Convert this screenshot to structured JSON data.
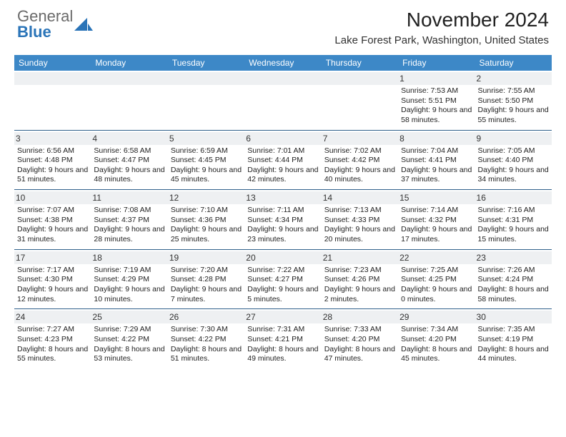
{
  "logo": {
    "text1": "General",
    "text2": "Blue"
  },
  "title": "November 2024",
  "location": "Lake Forest Park, Washington, United States",
  "colors": {
    "header_bg": "#3d88c7",
    "border": "#2e5f8a",
    "daybar": "#eef0f2",
    "logo_blue": "#2a74b8"
  },
  "weekdays": [
    "Sunday",
    "Monday",
    "Tuesday",
    "Wednesday",
    "Thursday",
    "Friday",
    "Saturday"
  ],
  "weeks": [
    [
      null,
      null,
      null,
      null,
      null,
      {
        "n": "1",
        "sr": "7:53 AM",
        "ss": "5:51 PM",
        "dl": "9 hours and 58 minutes."
      },
      {
        "n": "2",
        "sr": "7:55 AM",
        "ss": "5:50 PM",
        "dl": "9 hours and 55 minutes."
      }
    ],
    [
      {
        "n": "3",
        "sr": "6:56 AM",
        "ss": "4:48 PM",
        "dl": "9 hours and 51 minutes."
      },
      {
        "n": "4",
        "sr": "6:58 AM",
        "ss": "4:47 PM",
        "dl": "9 hours and 48 minutes."
      },
      {
        "n": "5",
        "sr": "6:59 AM",
        "ss": "4:45 PM",
        "dl": "9 hours and 45 minutes."
      },
      {
        "n": "6",
        "sr": "7:01 AM",
        "ss": "4:44 PM",
        "dl": "9 hours and 42 minutes."
      },
      {
        "n": "7",
        "sr": "7:02 AM",
        "ss": "4:42 PM",
        "dl": "9 hours and 40 minutes."
      },
      {
        "n": "8",
        "sr": "7:04 AM",
        "ss": "4:41 PM",
        "dl": "9 hours and 37 minutes."
      },
      {
        "n": "9",
        "sr": "7:05 AM",
        "ss": "4:40 PM",
        "dl": "9 hours and 34 minutes."
      }
    ],
    [
      {
        "n": "10",
        "sr": "7:07 AM",
        "ss": "4:38 PM",
        "dl": "9 hours and 31 minutes."
      },
      {
        "n": "11",
        "sr": "7:08 AM",
        "ss": "4:37 PM",
        "dl": "9 hours and 28 minutes."
      },
      {
        "n": "12",
        "sr": "7:10 AM",
        "ss": "4:36 PM",
        "dl": "9 hours and 25 minutes."
      },
      {
        "n": "13",
        "sr": "7:11 AM",
        "ss": "4:34 PM",
        "dl": "9 hours and 23 minutes."
      },
      {
        "n": "14",
        "sr": "7:13 AM",
        "ss": "4:33 PM",
        "dl": "9 hours and 20 minutes."
      },
      {
        "n": "15",
        "sr": "7:14 AM",
        "ss": "4:32 PM",
        "dl": "9 hours and 17 minutes."
      },
      {
        "n": "16",
        "sr": "7:16 AM",
        "ss": "4:31 PM",
        "dl": "9 hours and 15 minutes."
      }
    ],
    [
      {
        "n": "17",
        "sr": "7:17 AM",
        "ss": "4:30 PM",
        "dl": "9 hours and 12 minutes."
      },
      {
        "n": "18",
        "sr": "7:19 AM",
        "ss": "4:29 PM",
        "dl": "9 hours and 10 minutes."
      },
      {
        "n": "19",
        "sr": "7:20 AM",
        "ss": "4:28 PM",
        "dl": "9 hours and 7 minutes."
      },
      {
        "n": "20",
        "sr": "7:22 AM",
        "ss": "4:27 PM",
        "dl": "9 hours and 5 minutes."
      },
      {
        "n": "21",
        "sr": "7:23 AM",
        "ss": "4:26 PM",
        "dl": "9 hours and 2 minutes."
      },
      {
        "n": "22",
        "sr": "7:25 AM",
        "ss": "4:25 PM",
        "dl": "9 hours and 0 minutes."
      },
      {
        "n": "23",
        "sr": "7:26 AM",
        "ss": "4:24 PM",
        "dl": "8 hours and 58 minutes."
      }
    ],
    [
      {
        "n": "24",
        "sr": "7:27 AM",
        "ss": "4:23 PM",
        "dl": "8 hours and 55 minutes."
      },
      {
        "n": "25",
        "sr": "7:29 AM",
        "ss": "4:22 PM",
        "dl": "8 hours and 53 minutes."
      },
      {
        "n": "26",
        "sr": "7:30 AM",
        "ss": "4:22 PM",
        "dl": "8 hours and 51 minutes."
      },
      {
        "n": "27",
        "sr": "7:31 AM",
        "ss": "4:21 PM",
        "dl": "8 hours and 49 minutes."
      },
      {
        "n": "28",
        "sr": "7:33 AM",
        "ss": "4:20 PM",
        "dl": "8 hours and 47 minutes."
      },
      {
        "n": "29",
        "sr": "7:34 AM",
        "ss": "4:20 PM",
        "dl": "8 hours and 45 minutes."
      },
      {
        "n": "30",
        "sr": "7:35 AM",
        "ss": "4:19 PM",
        "dl": "8 hours and 44 minutes."
      }
    ]
  ],
  "labels": {
    "sunrise": "Sunrise:",
    "sunset": "Sunset:",
    "daylight": "Daylight:"
  }
}
